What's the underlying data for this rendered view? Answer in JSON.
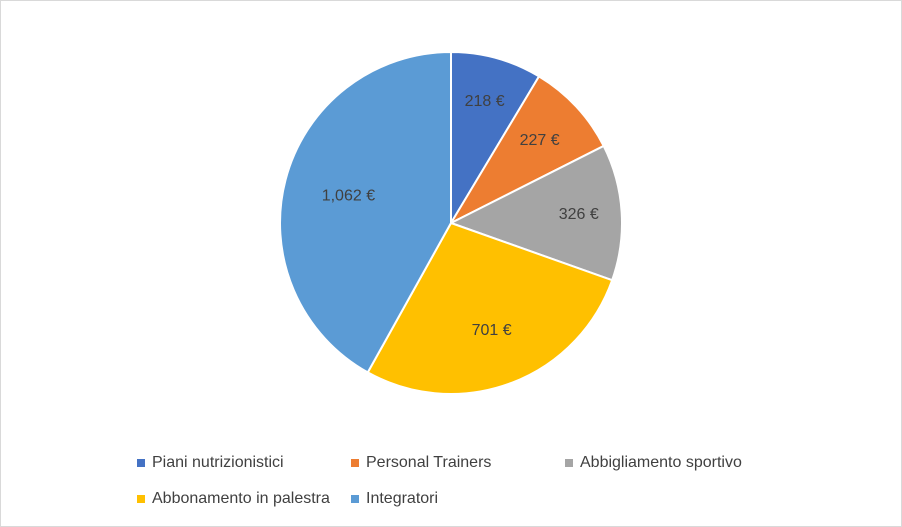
{
  "chart_data": {
    "type": "pie",
    "categories": [
      "Piani nutrizionistici",
      "Personal Trainers",
      "Abbigliamento sportivo",
      "Abbonamento in palestra",
      "Integratori"
    ],
    "values": [
      218,
      227,
      326,
      701,
      1062
    ],
    "data_labels": [
      "218 €",
      "227 €",
      "326 €",
      "701 €",
      "1,062 €"
    ],
    "colors": [
      "#4472C4",
      "#ED7D31",
      "#A5A5A5",
      "#FFC000",
      "#5B9BD5"
    ],
    "start_angle_deg": 0,
    "direction": "clockwise",
    "legend_position": "bottom"
  }
}
